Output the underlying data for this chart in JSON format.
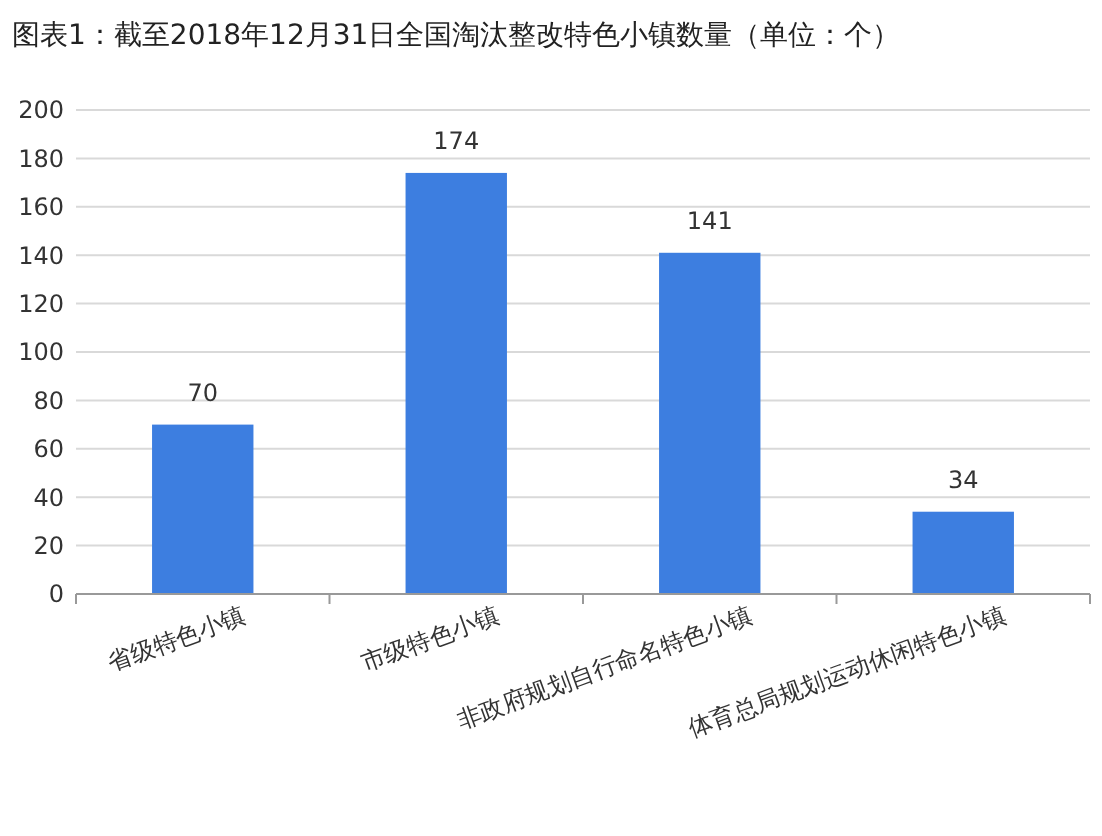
{
  "chart_data": {
    "type": "bar",
    "title": "图表1：截至2018年12月31日全国淘汰整改特色小镇数量（单位：个）",
    "categories": [
      "省级特色小镇",
      "市级特色小镇",
      "非政府规划自行命名特色小镇",
      "体育总局规划运动休闲特色小镇"
    ],
    "values": [
      70,
      174,
      141,
      34
    ],
    "color": "#3d7ee0",
    "ylim": [
      0,
      200
    ],
    "yticks": [
      0,
      20,
      40,
      60,
      80,
      100,
      120,
      140,
      160,
      180,
      200
    ],
    "grid": "y",
    "data_labels": true
  }
}
